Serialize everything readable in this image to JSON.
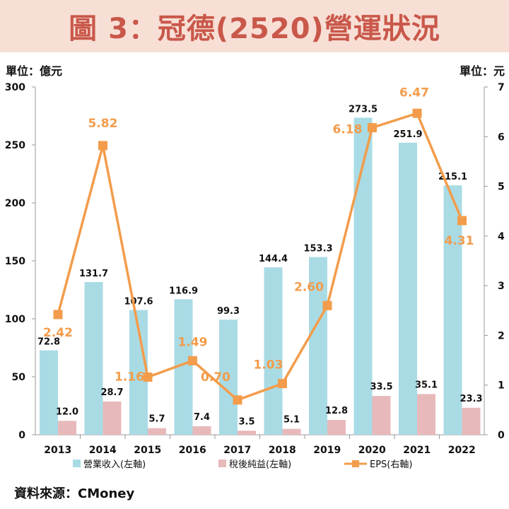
{
  "title": "圖 3：冠德(2520)營運狀況",
  "unit_left": "單位：億元",
  "unit_right": "單位：元",
  "source": "資料來源：CMoney",
  "colors": {
    "revenue": "#a9dbe5",
    "net_income": "#e8b9bb",
    "eps": "#f39c4b",
    "eps_label": "#f39c4b",
    "title": "#c9584a",
    "title_bg": "#f8dfd6"
  },
  "chart_data": {
    "type": "bar+line",
    "categories": [
      "2013",
      "2014",
      "2015",
      "2016",
      "2017",
      "2018",
      "2019",
      "2020",
      "2021",
      "2022"
    ],
    "series": [
      {
        "name": "營業收入(左軸)",
        "type": "bar",
        "axis": "left",
        "values": [
          72.8,
          131.7,
          107.6,
          116.9,
          99.3,
          144.4,
          153.3,
          273.5,
          251.9,
          215.1
        ],
        "labels": [
          "72.8",
          "131.7",
          "107.6",
          "116.9",
          "99.3",
          "144.4",
          "153.3",
          "273.5",
          "251.9",
          "215.1"
        ]
      },
      {
        "name": "稅後純益(左軸)",
        "type": "bar",
        "axis": "left",
        "values": [
          12.0,
          28.7,
          5.7,
          7.4,
          3.5,
          5.1,
          12.8,
          33.5,
          35.1,
          23.3
        ],
        "labels": [
          "12.0",
          "28.7",
          "5.7",
          "7.4",
          "3.5",
          "5.1",
          "12.8",
          "33.5",
          "35.1",
          "23.3"
        ]
      },
      {
        "name": "EPS(右軸)",
        "type": "line",
        "axis": "right",
        "values": [
          2.42,
          5.82,
          1.16,
          1.49,
          0.7,
          1.03,
          2.6,
          6.18,
          6.47,
          4.31
        ],
        "labels": [
          "2.42",
          "5.82",
          "1.16",
          "1.49",
          "0.70",
          "1.03",
          "2.60",
          "6.18",
          "6.47",
          "4.31"
        ]
      }
    ],
    "y_left": {
      "ylim": [
        0,
        300
      ],
      "ticks": [
        "0",
        "50",
        "100",
        "150",
        "200",
        "250",
        "300"
      ]
    },
    "y_right": {
      "ylim": [
        0,
        7
      ],
      "ticks": [
        "0",
        "1",
        "2",
        "3",
        "4",
        "5",
        "6",
        "7"
      ]
    },
    "legend_position": "bottom"
  }
}
